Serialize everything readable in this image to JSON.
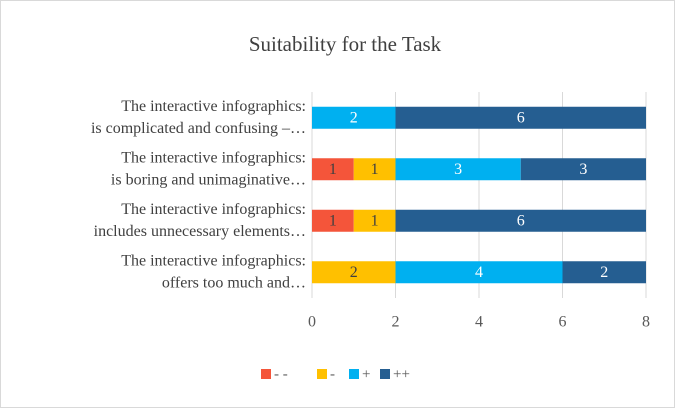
{
  "chart_data": {
    "type": "stacked-barh",
    "title": "Suitability for the Task",
    "categories": [
      [
        "The interactive infographics:",
        "is complicated and confusing –…"
      ],
      [
        "The interactive infographics:",
        "is boring and unimaginative…"
      ],
      [
        "The interactive infographics:",
        "includes unnecessary elements…"
      ],
      [
        "The interactive infographics:",
        "offers too much and…"
      ]
    ],
    "series": [
      {
        "name": "- -",
        "color": "#f4553a",
        "label_color": "#404040",
        "values": [
          0,
          1,
          1,
          0
        ]
      },
      {
        "name": "-",
        "color": "#ffc000",
        "label_color": "#404040",
        "values": [
          0,
          1,
          1,
          2
        ]
      },
      {
        "name": "+",
        "color": "#00b0f0",
        "label_color": "#ffffff",
        "values": [
          2,
          3,
          0,
          4
        ]
      },
      {
        "name": "++",
        "color": "#255e91",
        "label_color": "#ffffff",
        "values": [
          6,
          3,
          6,
          2
        ]
      }
    ],
    "xlim": [
      0,
      8
    ],
    "xticks": [
      0,
      2,
      4,
      6,
      8
    ],
    "grid": true,
    "legend": "bottom"
  }
}
